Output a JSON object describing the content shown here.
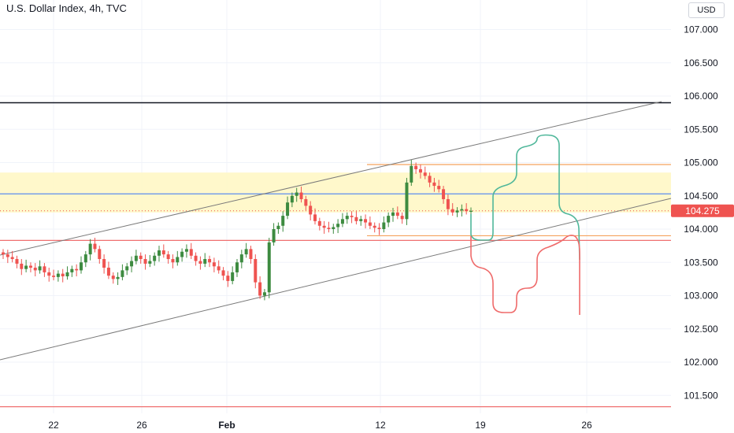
{
  "header": {
    "title": "U.S. Dollar Index, 4h, TVC",
    "currency": "USD"
  },
  "colors": {
    "up": "#26a69a",
    "up_body": "#3d8b40",
    "down": "#ef5350",
    "zone_fill": "#fff7c2",
    "blue_line": "#5b8def",
    "orange_line": "#f5a25d",
    "red_line": "#ef7070",
    "channel": "#7a7a7a",
    "teal_path": "#4fb79a",
    "red_path": "#ef6b6b",
    "price_badge": "#ef5350"
  },
  "chart_data": {
    "type": "candlestick",
    "title": "U.S. Dollar Index, 4h, TVC",
    "ylim": [
      101.2,
      107.5
    ],
    "y_ticks": [
      "107.000",
      "106.500",
      "106.000",
      "105.500",
      "105.000",
      "104.500",
      "104.000",
      "103.500",
      "103.000",
      "102.500",
      "102.000",
      "101.500"
    ],
    "x_ticks": [
      "22",
      "26",
      "Feb",
      "12",
      "19",
      "26"
    ],
    "last_price": "104.275",
    "levels": {
      "black_horizontal": 105.9,
      "yellow_zone": [
        104.25,
        104.85
      ],
      "blue_line": 104.53,
      "orange_upper": 104.97,
      "orange_lower": 103.9,
      "red_line": 103.83,
      "red_bottom": 101.33
    },
    "closes": [
      103.62,
      103.58,
      103.55,
      103.48,
      103.4,
      103.45,
      103.42,
      103.38,
      103.44,
      103.35,
      103.3,
      103.28,
      103.33,
      103.29,
      103.35,
      103.4,
      103.38,
      103.5,
      103.62,
      103.78,
      103.7,
      103.55,
      103.42,
      103.3,
      103.25,
      103.28,
      103.38,
      103.44,
      103.52,
      103.6,
      103.55,
      103.48,
      103.52,
      103.6,
      103.68,
      103.62,
      103.55,
      103.5,
      103.58,
      103.66,
      103.7,
      103.6,
      103.52,
      103.48,
      103.55,
      103.5,
      103.44,
      103.38,
      103.3,
      103.22,
      103.35,
      103.5,
      103.62,
      103.7,
      103.55,
      103.2,
      103.0,
      103.05,
      103.8,
      104.0,
      104.05,
      104.2,
      104.4,
      104.5,
      104.55,
      104.45,
      104.35,
      104.22,
      104.12,
      104.05,
      104.02,
      104.0,
      104.03,
      104.08,
      104.15,
      104.2,
      104.18,
      104.12,
      104.15,
      104.1,
      104.05,
      104.02,
      104.0,
      104.1,
      104.2,
      104.25,
      104.2,
      104.15,
      104.7,
      104.95,
      104.9,
      104.85,
      104.8,
      104.7,
      104.65,
      104.6,
      104.45,
      104.3,
      104.25,
      104.28,
      104.3,
      104.27,
      104.275
    ]
  }
}
